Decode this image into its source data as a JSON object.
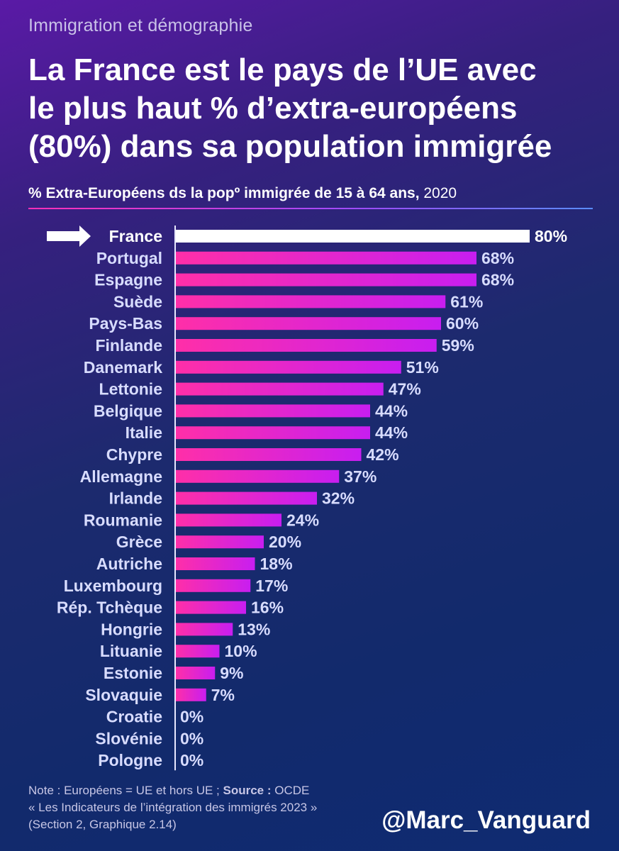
{
  "header": {
    "kicker": "Immigration et démographie",
    "title_lines": [
      "La France est le pays de l’UE avec",
      "le plus haut % d’extra-européens",
      "(80%) dans sa population immigrée"
    ],
    "subtitle_bold": "% Extra-Européens ds la popº immigrée de 15 à 64 ans,",
    "subtitle_year": " 2020"
  },
  "colors": {
    "highlight_bar": "#ffffff",
    "bar_start": "#ff2fa8",
    "bar_end": "#c81ef0",
    "label_text": "#d8dcff",
    "highlight_text": "#ffffff"
  },
  "chart_data": {
    "type": "bar",
    "orientation": "horizontal",
    "title": "% Extra-Européens ds la popº immigrée de 15 à 64 ans, 2020",
    "value_suffix": "%",
    "highlight": "France",
    "xlim": [
      0,
      80
    ],
    "categories": [
      "France",
      "Portugal",
      "Espagne",
      "Suède",
      "Pays-Bas",
      "Finlande",
      "Danemark",
      "Lettonie",
      "Belgique",
      "Italie",
      "Chypre",
      "Allemagne",
      "Irlande",
      "Roumanie",
      "Grèce",
      "Autriche",
      "Luxembourg",
      "Rép. Tchèque",
      "Hongrie",
      "Lituanie",
      "Estonie",
      "Slovaquie",
      "Croatie",
      "Slovénie",
      "Pologne"
    ],
    "values": [
      80,
      68,
      68,
      61,
      60,
      59,
      51,
      47,
      44,
      44,
      42,
      37,
      32,
      24,
      20,
      18,
      17,
      16,
      13,
      10,
      9,
      7,
      0,
      0,
      0
    ],
    "xlabel": "",
    "ylabel": ""
  },
  "footer": {
    "note_prefix": "Note : Européens = UE et hors UE ; ",
    "source_label": "Source :",
    "source_org": " OCDE",
    "source_line2": "« Les Indicateurs de l’intégration des immigrés 2023 »",
    "source_line3": "(Section 2, Graphique 2.14)",
    "handle": "@Marc_Vanguard"
  }
}
